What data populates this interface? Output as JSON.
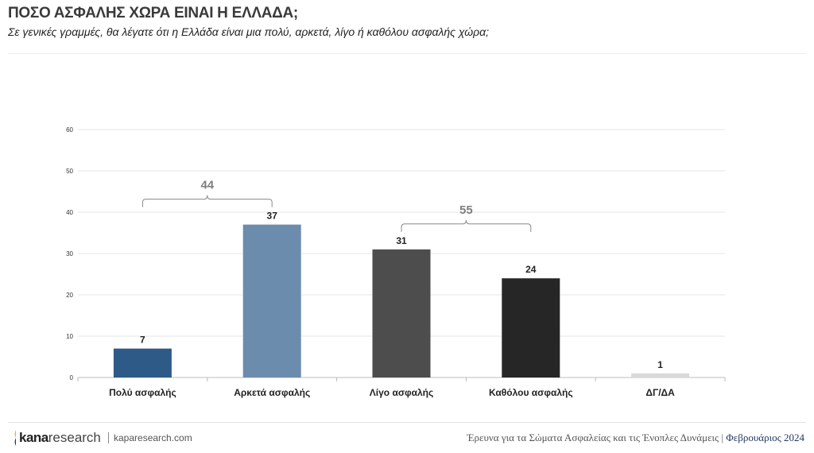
{
  "header": {
    "title": "ΠΟΣΟ ΑΣΦΑΛΗΣ ΧΩΡΑ ΕΙΝΑΙ Η ΕΛΛΑΔΑ;",
    "subtitle": "Σε γενικές γραμμές, θα λέγατε ότι η Ελλάδα είναι μια πολύ, αρκετά, λίγο ή καθόλου ασφαλής χώρα;"
  },
  "chart_data": {
    "type": "bar",
    "categories": [
      "Πολύ ασφαλής",
      "Αρκετά ασφαλής",
      "Λίγο ασφαλής",
      "Καθόλου ασφαλής",
      "ΔΓ/ΔΑ"
    ],
    "values": [
      7,
      37,
      31,
      24,
      1
    ],
    "colors": [
      "#2e5a87",
      "#6b8cad",
      "#4d4d4d",
      "#262626",
      "#d9d9d9"
    ],
    "ylim": [
      0,
      60
    ],
    "yticks": [
      0,
      10,
      20,
      30,
      40,
      50,
      60
    ],
    "grid": true,
    "annotations": [
      {
        "label": "44",
        "from": 0,
        "to": 1
      },
      {
        "label": "55",
        "from": 2,
        "to": 3
      }
    ]
  },
  "footer": {
    "logo_bold": "kana",
    "logo_light": "research",
    "url": "kaparesearch.com",
    "survey": "Έρευνα για τα Σώματα Ασφαλείας και τις Ένοπλες Δυνάμεις | ",
    "date": "Φεβρουάριος 2024"
  }
}
